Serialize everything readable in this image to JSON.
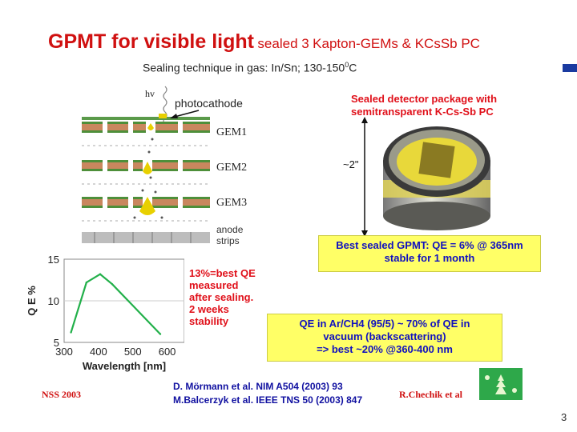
{
  "title": {
    "main": "GPMT for visible light",
    "sealed": "sealed 3",
    "kapton": "Kapton-GEMs & KCsSb PC"
  },
  "subtitle": {
    "text": "Sealing technique in gas: In/Sn; 130-150",
    "sup": "0",
    "unit": "C"
  },
  "diagram": {
    "hv": "hv",
    "photocathode": "photocathode",
    "gem1": "GEM1",
    "gem2": "GEM2",
    "gem3": "GEM3",
    "anode1": "anode",
    "anode2": "strips"
  },
  "photo": {
    "caption_line1": "Sealed detector package with",
    "caption_line2": "semitransparent K-Cs-Sb PC",
    "size_label": "~2\""
  },
  "best_box": {
    "line1": "Best sealed GPMT: QE = 6% @ 365nm",
    "line2": "stable for 1 month"
  },
  "qe_note": {
    "line1": "13%=best QE",
    "line2": "measured",
    "line3": "after sealing.",
    "line4": "2 weeks",
    "line5": "stability"
  },
  "argon_box": {
    "line1": "QE in Ar/CH4 (95/5) ~ 70% of QE in",
    "line2": "vacuum (backscattering)",
    "line3": "=> best ~20% @360-400 nm"
  },
  "chart_data": {
    "type": "line",
    "xlabel": "Wavelength [nm]",
    "ylabel": "Q E %",
    "xlim": [
      300,
      650
    ],
    "ylim": [
      5,
      15
    ],
    "xticks": [
      "300",
      "400",
      "500",
      "600"
    ],
    "yticks": [
      "5",
      "10",
      "15"
    ],
    "grid": true,
    "series": [
      {
        "color": "#22b04a",
        "x": [
          320,
          365,
          405,
          440,
          580
        ],
        "y": [
          6.2,
          12.2,
          13.2,
          12.0,
          6.0
        ]
      }
    ]
  },
  "refs": {
    "line1": "D. Mörmann et al. NIM A504 (2003) 93",
    "line2": "M.Balcerzyk et al. IEEE TNS 50 (2003) 847",
    "author": "R.Chechik et al"
  },
  "nss": "NSS 2003",
  "page_number": "3",
  "colors": {
    "title_red": "#d01010",
    "box_yellow": "#ffff66",
    "text_blue": "#1010c0",
    "curve_green": "#22b04a"
  }
}
